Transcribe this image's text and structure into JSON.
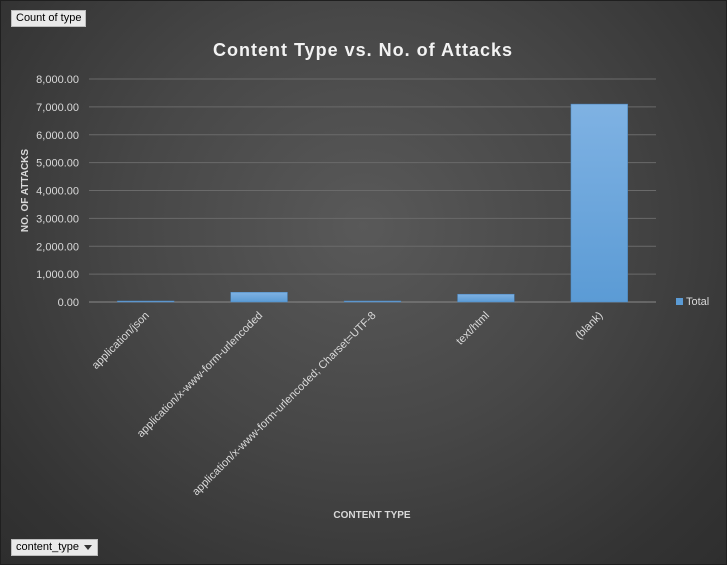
{
  "field_buttons": {
    "value_field": "Count of type",
    "axis_field": "content_type"
  },
  "colors": {
    "bar": "#5b9bd5",
    "bar_light": "#7fb2e3",
    "text": "#d9d9d9",
    "title": "#f2f2f2",
    "grid": "#6a6a6a"
  },
  "chart_data": {
    "type": "bar",
    "title": "Content Type vs. No. of Attacks",
    "xlabel": "CONTENT TYPE",
    "ylabel": "NO. OF ATTACKS",
    "categories": [
      "application/json",
      "application/x-www-form-urlencoded",
      "application/x-www-form-urlencoded; Charset=UTF-8",
      "text/html",
      "(blank)"
    ],
    "series": [
      {
        "name": "Total",
        "values": [
          4,
          350,
          2,
          280,
          7100
        ]
      }
    ],
    "ylim": [
      0,
      8000
    ],
    "yticks": [
      "0.00",
      "1,000.00",
      "2,000.00",
      "3,000.00",
      "4,000.00",
      "5,000.00",
      "6,000.00",
      "7,000.00",
      "8,000.00"
    ],
    "grid": true,
    "legend": "right"
  }
}
